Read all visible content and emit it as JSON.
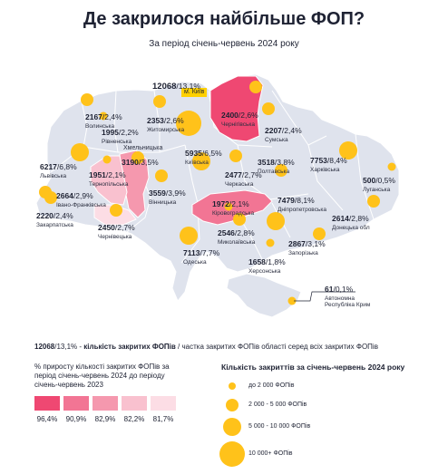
{
  "title": "Де закрилося найбільше ФОП?",
  "subtitle": "За період січень-червень 2024 року",
  "colors": {
    "map_fill": "#dfe3ed",
    "border": "#ffffff",
    "bubble": "#ffc21a",
    "shade_1": "#ef4872",
    "shade_2": "#f27594",
    "shade_3": "#f598ae",
    "shade_4": "#f9c1cf",
    "shade_5": "#fcdde5"
  },
  "regions": {
    "kyiv_city": {
      "value": "12068",
      "pct": "/13,1%",
      "name": "м. Київ"
    },
    "chernihiv": {
      "value": "2400",
      "pct": "/2,6%",
      "name": "Чернігівська"
    },
    "sumy": {
      "value": "2207",
      "pct": "/2,4%",
      "name": "Сумська"
    },
    "zhytomyr": {
      "value": "2353",
      "pct": "/2,6%",
      "name": "Житомирська"
    },
    "volyn": {
      "value": "2167",
      "pct": "/2,4%",
      "name": "Волинська"
    },
    "rivne": {
      "value": "1995",
      "pct": "/2,2%",
      "name": "Рівненська"
    },
    "lviv": {
      "value": "6217",
      "pct": "/6,8%",
      "name": "Львівська"
    },
    "khmelnytskyi": {
      "value": "3190",
      "pct": "/3,5%",
      "name": "Хмельницька"
    },
    "ternopil": {
      "value": "1951",
      "pct": "/2,1%",
      "name": "Тернопільська"
    },
    "kyiv_oblast": {
      "value": "5935",
      "pct": "/6,5%",
      "name": "Київська"
    },
    "poltava": {
      "value": "3518",
      "pct": "/3,8%",
      "name": "Полтавська"
    },
    "kharkiv": {
      "value": "7753",
      "pct": "/8,4%",
      "name": "Харківська"
    },
    "luhansk": {
      "value": "500",
      "pct": "/0,5%",
      "name": "Луганська"
    },
    "cherkasy": {
      "value": "2477",
      "pct": "/2,7%",
      "name": "Черкаська"
    },
    "vinnytsia": {
      "value": "3559",
      "pct": "/3,9%",
      "name": "Вінницька"
    },
    "ivano_frankivsk": {
      "value": "2664",
      "pct": "/2,9%",
      "name": "Івано-Франківська"
    },
    "zakarpattia": {
      "value": "2220",
      "pct": "/2,4%",
      "name": "Закарпатська"
    },
    "chernivtsi": {
      "value": "2450",
      "pct": "/2,7%",
      "name": "Чернівецька"
    },
    "kirovohrad": {
      "value": "1972",
      "pct": "/2,1%",
      "name": "Кіровоградська"
    },
    "dnipro": {
      "value": "7479",
      "pct": "/8,1%",
      "name": "Дніпропетровська"
    },
    "donetsk": {
      "value": "2614",
      "pct": "/2,8%",
      "name": "Донецька обл"
    },
    "mykolaiv": {
      "value": "2546",
      "pct": "/2,8%",
      "name": "Миколаївська"
    },
    "zaporizhzhia": {
      "value": "2867",
      "pct": "/3,1%",
      "name": "Запорізька"
    },
    "odesa": {
      "value": "7113",
      "pct": "/7,7%",
      "name": "Одеська"
    },
    "kherson": {
      "value": "1658",
      "pct": "/1,8%",
      "name": "Херсонська"
    },
    "crimea": {
      "value": "61",
      "pct": "/0,1%",
      "name": "Автономна Республіка Крим"
    }
  },
  "explain": {
    "example": "12068",
    "example_pct": "/13,1%",
    "dash": " - ",
    "label_bold": "кількість закритих ФОПів",
    "rest": " / частка закритих ФОПів області серед всіх закритих ФОПів"
  },
  "growth_legend": {
    "title": "% приросту кількості закритих ФОПів за період січень-червень 2024 до періоду січень-червень 2023",
    "values": [
      "96,4%",
      "90,9%",
      "82,9%",
      "82,2%",
      "81,7%"
    ]
  },
  "size_legend": {
    "title": "Кількість закриттів за січень-червень 2024 року",
    "items": [
      "до 2 000 ФОПів",
      "2 000 - 5 000 ФОПів",
      "5 000 - 10 000 ФОПів",
      "10 000+ ФОПів"
    ]
  },
  "map_bubbles": [
    {
      "region": "kyiv_city",
      "count": 12068
    },
    {
      "region": "chernihiv",
      "count": 2400
    },
    {
      "region": "sumy",
      "count": 2207
    },
    {
      "region": "zhytomyr",
      "count": 2353
    },
    {
      "region": "volyn",
      "count": 2167
    },
    {
      "region": "rivne",
      "count": 1995
    },
    {
      "region": "lviv",
      "count": 6217
    },
    {
      "region": "khmelnytskyi",
      "count": 3190
    },
    {
      "region": "ternopil",
      "count": 1951
    },
    {
      "region": "kyiv_oblast",
      "count": 5935
    },
    {
      "region": "poltava",
      "count": 3518
    },
    {
      "region": "kharkiv",
      "count": 7753
    },
    {
      "region": "luhansk",
      "count": 500
    },
    {
      "region": "cherkasy",
      "count": 2477
    },
    {
      "region": "vinnytsia",
      "count": 3559
    },
    {
      "region": "ivano_frankivsk",
      "count": 2664
    },
    {
      "region": "zakarpattia",
      "count": 2220
    },
    {
      "region": "chernivtsi",
      "count": 2450
    },
    {
      "region": "kirovohrad",
      "count": 1972
    },
    {
      "region": "dnipro",
      "count": 7479
    },
    {
      "region": "donetsk",
      "count": 2614
    },
    {
      "region": "mykolaiv",
      "count": 2546
    },
    {
      "region": "zaporizhzhia",
      "count": 2867
    },
    {
      "region": "odesa",
      "count": 7113
    },
    {
      "region": "kherson",
      "count": 1658
    },
    {
      "region": "crimea",
      "count": 61
    }
  ]
}
